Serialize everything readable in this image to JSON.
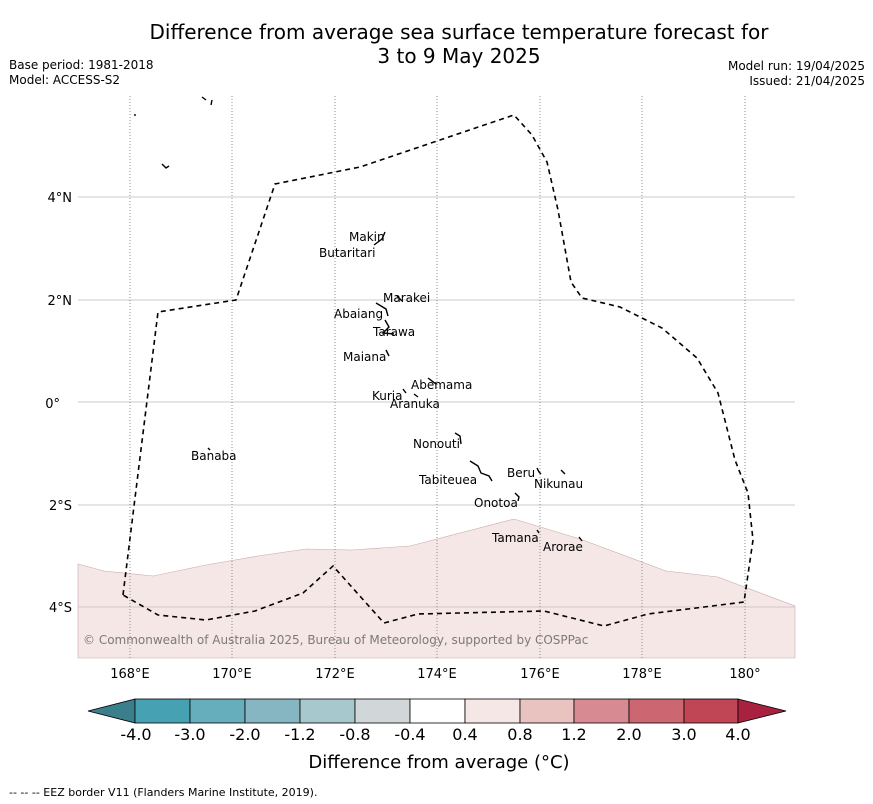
{
  "title_line1": "Difference from average sea surface temperature forecast for",
  "title_line2": "3 to 9 May 2025",
  "base_period": "Base period: 1981-2018",
  "model": "Model: ACCESS-S2",
  "model_run": "Model run: 19/04/2025",
  "issued": "Issued: 21/04/2025",
  "copyright": "© Commonwealth of Australia 2025, Bureau of Meteorology, supported by COSPPac",
  "colorbar": {
    "label": "Difference from average (°C)",
    "ticks": [
      "-4.0",
      "-3.0",
      "-2.0",
      "-1.2",
      "-0.8",
      "-0.4",
      "0.4",
      "0.8",
      "1.2",
      "2.0",
      "3.0",
      "4.0"
    ],
    "colors": [
      "#3c7f8c",
      "#46a2b2",
      "#66aebb",
      "#86b6c1",
      "#a7c8cc",
      "#d1d7d9",
      "#ffffff",
      "#f5e7e6",
      "#e8c3c0",
      "#d88a93",
      "#cc6670",
      "#c04555",
      "#a8213e"
    ]
  },
  "legend": "--  --  -- EEZ border V11 (Flanders Marine Institute, 2019).",
  "map": {
    "x_ticks": [
      "168°E",
      "170°E",
      "172°E",
      "174°E",
      "176°E",
      "178°E",
      "180°"
    ],
    "y_ticks": [
      "4°N",
      "2°N",
      "0°",
      "2°S",
      "4°S"
    ],
    "islands": [
      {
        "name": "Makin",
        "lon": 172.9,
        "lat": 3.3
      },
      {
        "name": "Butaritari",
        "lon": 172.8,
        "lat": 3.1
      },
      {
        "name": "Marakei",
        "lon": 173.3,
        "lat": 2.0
      },
      {
        "name": "Abaiang",
        "lon": 172.9,
        "lat": 1.8
      },
      {
        "name": "Tarawa",
        "lon": 173.0,
        "lat": 1.4
      },
      {
        "name": "Maiana",
        "lon": 173.0,
        "lat": 0.9
      },
      {
        "name": "Abemama",
        "lon": 173.9,
        "lat": 0.4
      },
      {
        "name": "Kuria",
        "lon": 173.4,
        "lat": 0.2
      },
      {
        "name": "Aranuka",
        "lon": 173.6,
        "lat": 0.15
      },
      {
        "name": "Nonouti",
        "lon": 174.4,
        "lat": -0.7
      },
      {
        "name": "Banaba",
        "lon": 169.5,
        "lat": -0.85
      },
      {
        "name": "Tabiteuea",
        "lon": 174.8,
        "lat": -1.3
      },
      {
        "name": "Beru",
        "lon": 176.0,
        "lat": -1.35
      },
      {
        "name": "Nikunau",
        "lon": 176.4,
        "lat": -1.4
      },
      {
        "name": "Onotoa",
        "lon": 175.6,
        "lat": -1.8
      },
      {
        "name": "Tamana",
        "lon": 176.0,
        "lat": -2.5
      },
      {
        "name": "Arorae",
        "lon": 176.8,
        "lat": -2.65
      }
    ]
  }
}
